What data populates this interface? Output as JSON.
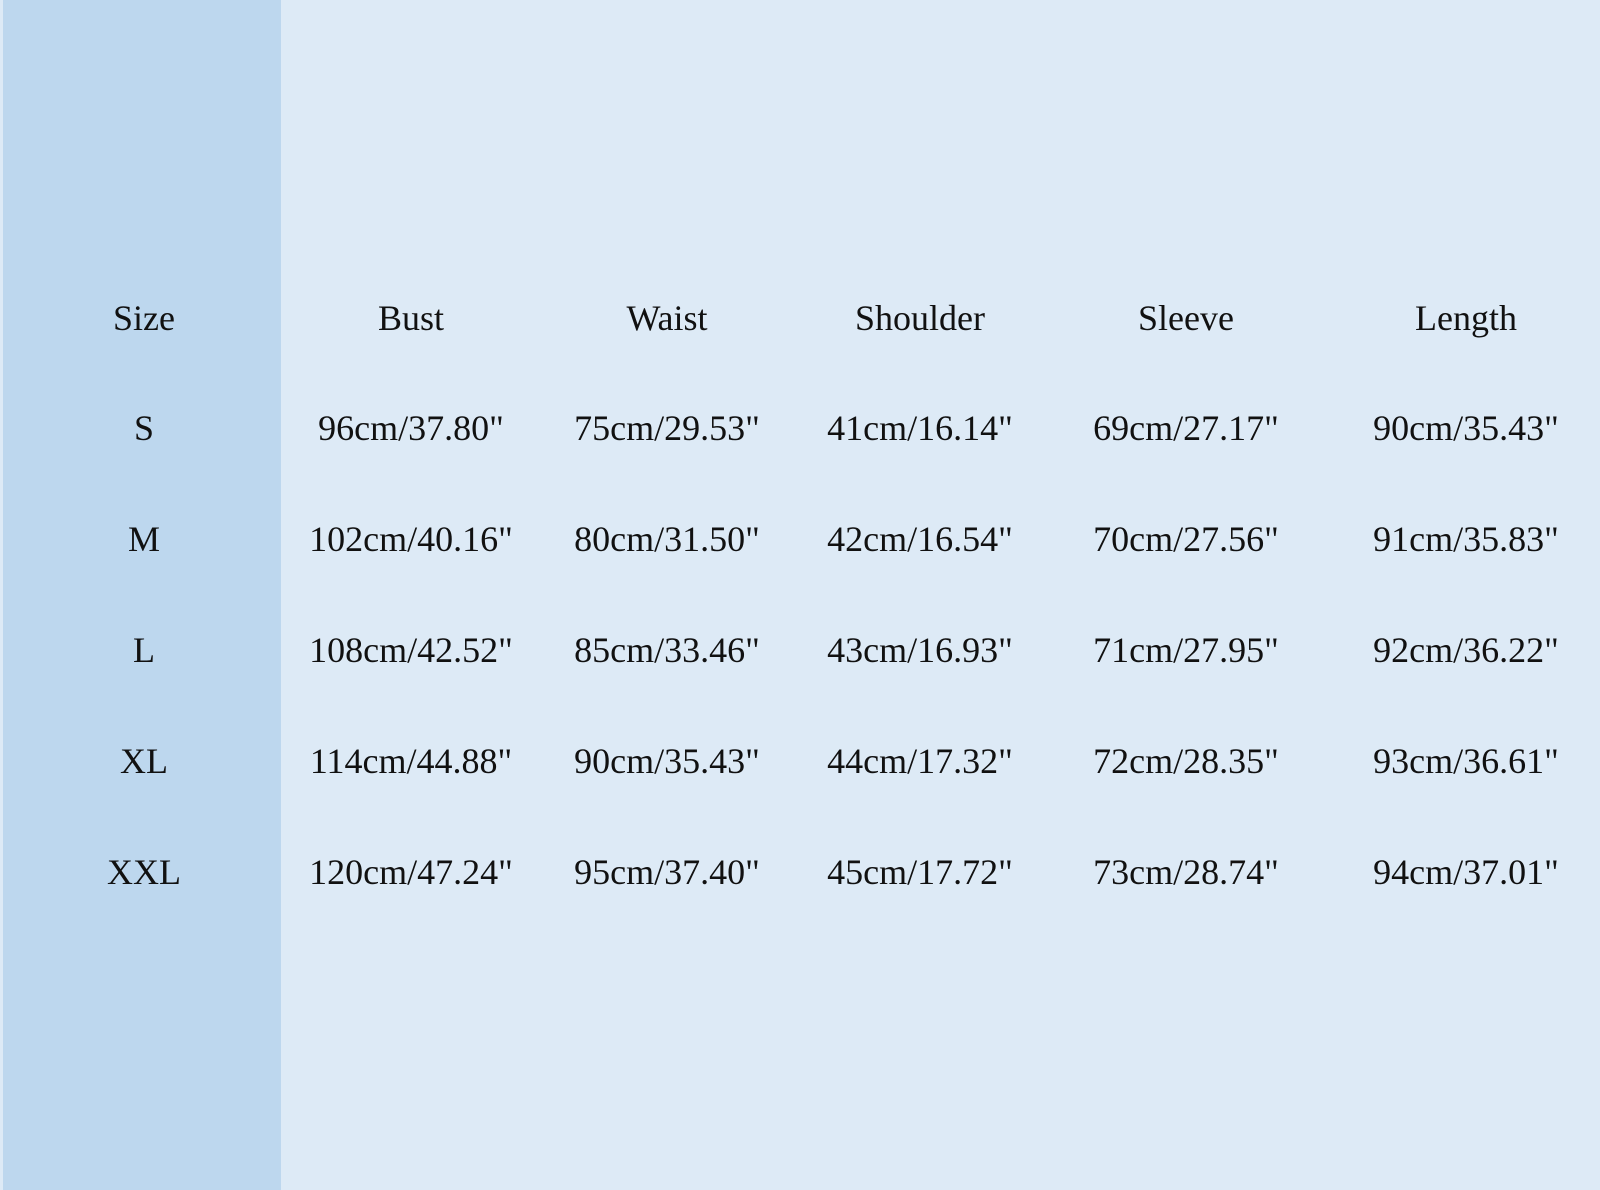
{
  "table": {
    "headers": [
      "Size",
      "Bust",
      "Waist",
      "Shoulder",
      "Sleeve",
      "Length"
    ],
    "rows": [
      [
        "S",
        "96cm/37.80\"",
        "75cm/29.53\"",
        "41cm/16.14\"",
        "69cm/27.17\"",
        "90cm/35.43\""
      ],
      [
        "M",
        "102cm/40.16\"",
        "80cm/31.50\"",
        "42cm/16.54\"",
        "70cm/27.56\"",
        "91cm/35.83\""
      ],
      [
        "L",
        "108cm/42.52\"",
        "85cm/33.46\"",
        "43cm/16.93\"",
        "71cm/27.95\"",
        "92cm/36.22\""
      ],
      [
        "XL",
        "114cm/44.88\"",
        "90cm/35.43\"",
        "44cm/17.32\"",
        "72cm/28.35\"",
        "93cm/36.61\""
      ],
      [
        "XXL",
        "120cm/47.24\"",
        "95cm/37.40\"",
        "45cm/17.72\"",
        "73cm/28.74\"",
        "94cm/37.01\""
      ]
    ]
  },
  "colors": {
    "size_column_bg": "#bdd7ee",
    "background": "#ddeaf6",
    "text": "#111111"
  }
}
